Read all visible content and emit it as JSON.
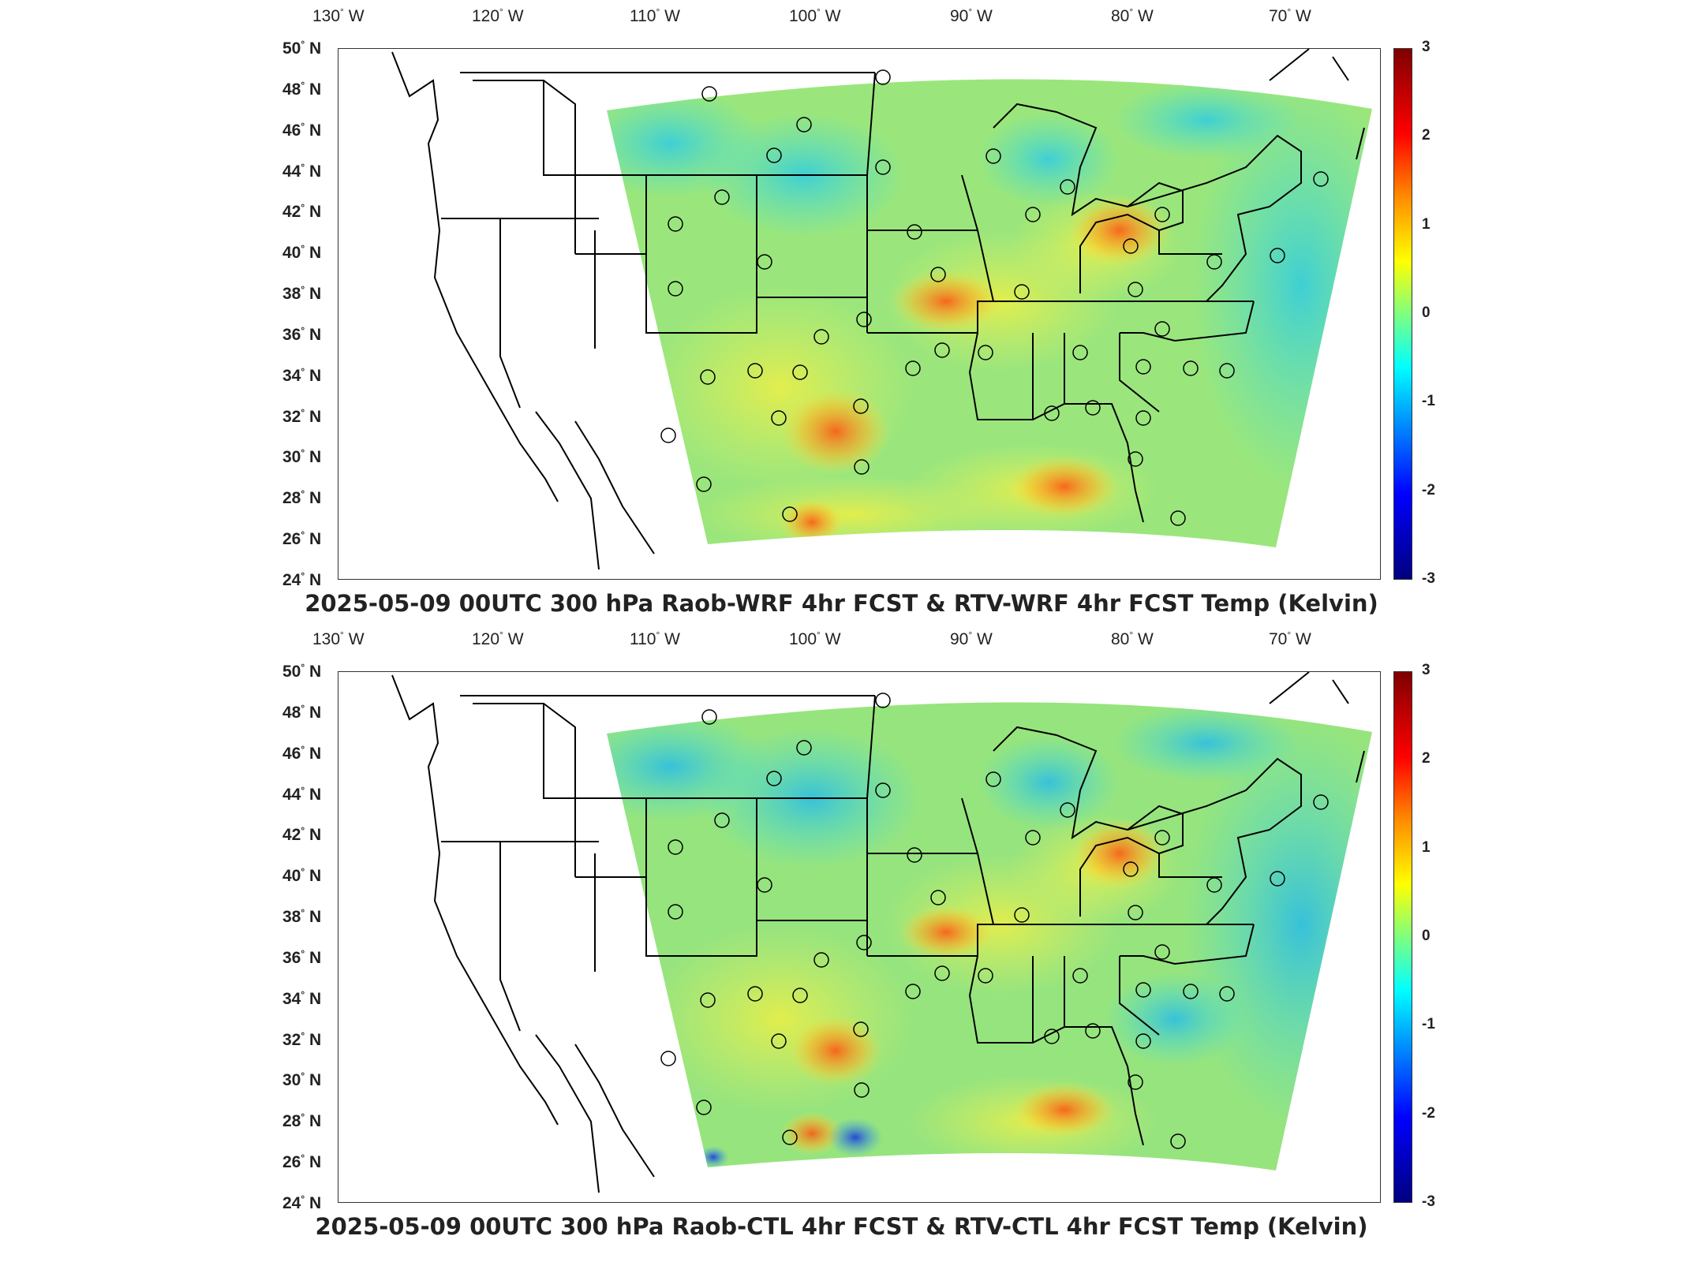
{
  "colorbar": {
    "ticks": [
      "3",
      "2",
      "1",
      "0",
      "-1",
      "-2",
      "-3"
    ],
    "range": [
      -3,
      3
    ],
    "colormap": [
      "#7f0000",
      "#ff0000",
      "#ff8c00",
      "#ffff00",
      "#7fff7f",
      "#00ffff",
      "#0080ff",
      "#0000ff",
      "#00007f"
    ]
  },
  "axes": {
    "longitudes": [
      "130",
      "120",
      "110",
      "100",
      "90",
      "80",
      "70"
    ],
    "lon_suffix": "W",
    "latitudes": [
      "50",
      "48",
      "46",
      "44",
      "42",
      "40",
      "38",
      "36",
      "34",
      "32",
      "30",
      "28",
      "26",
      "24"
    ],
    "lat_suffix": "N",
    "degree_symbol": "°"
  },
  "panels": [
    {
      "id": "top",
      "title": "2025-05-09 00UTC 300 hPa Raob-WRF 4hr FCST & RTV-WRF 4hr FCST Temp (Kelvin)"
    },
    {
      "id": "bottom",
      "title": "2025-05-09 00UTC 300 hPa Raob-CTL 4hr FCST & RTV-CTL 4hr FCST Temp (Kelvin)"
    }
  ],
  "colors": {
    "background": "#ffffff",
    "field_base": "#9be87a",
    "warm_anomaly": "#ff9a1a",
    "hot_anomaly": "#e8321a",
    "cool_anomaly": "#38d8f0",
    "boundary_lines": "#000000"
  }
}
